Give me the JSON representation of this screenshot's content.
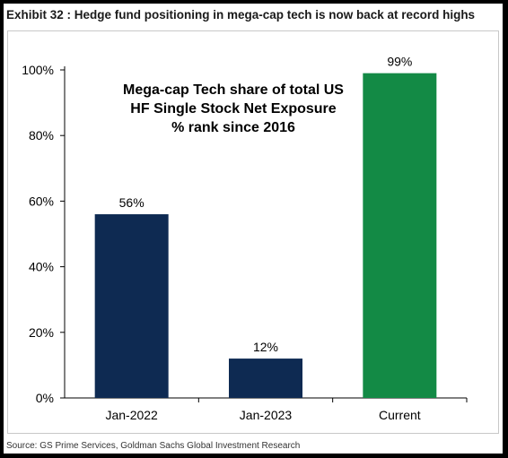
{
  "header": {
    "title": "Exhibit 32 : Hedge fund positioning in mega-cap tech is now back at record highs"
  },
  "footer": {
    "source": "Source: GS Prime Services, Goldman Sachs Global Investment Research"
  },
  "chart_data": {
    "type": "bar",
    "annotation_lines": [
      "Mega-cap Tech share of total US",
      "HF Single Stock Net Exposure",
      "% rank since 2016"
    ],
    "categories": [
      "Jan-2022",
      "Jan-2023",
      "Current"
    ],
    "values": [
      56,
      12,
      99
    ],
    "data_labels": [
      "56%",
      "12%",
      "99%"
    ],
    "bar_colors": [
      "#0e2a52",
      "#0e2a52",
      "#138a45"
    ],
    "ylim": [
      0,
      100
    ],
    "yticks": [
      0,
      20,
      40,
      60,
      80,
      100
    ],
    "ytick_labels": [
      "0%",
      "20%",
      "40%",
      "60%",
      "80%",
      "100%"
    ],
    "grid": false,
    "legend": "none"
  }
}
